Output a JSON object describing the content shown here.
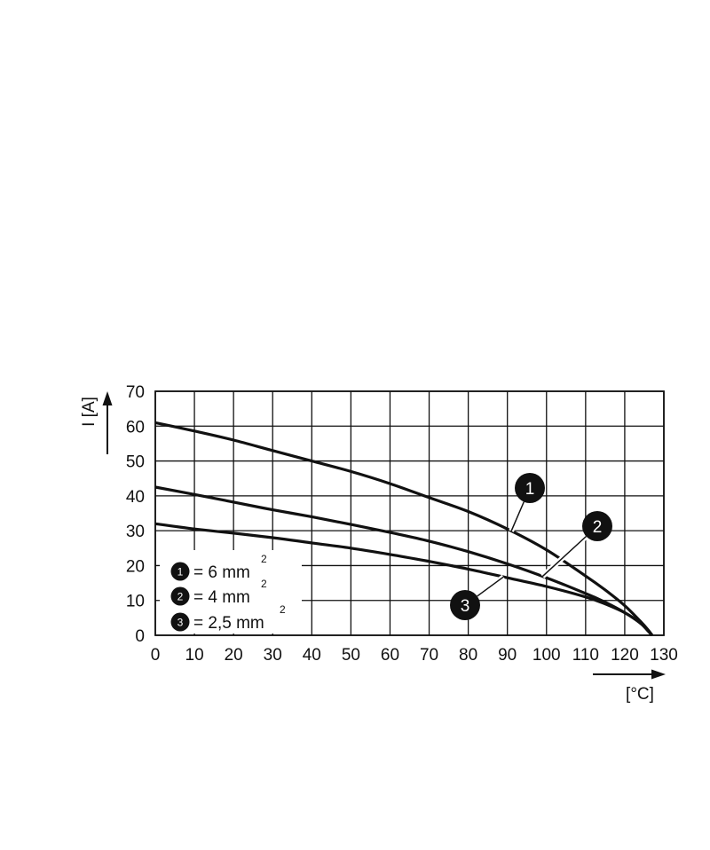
{
  "chart_data": {
    "type": "line",
    "xlabel": "[°C]",
    "ylabel": "I [A]",
    "xlim": [
      0,
      130
    ],
    "ylim": [
      0,
      70
    ],
    "x_ticks": [
      0,
      10,
      20,
      30,
      40,
      50,
      60,
      70,
      80,
      90,
      100,
      110,
      120,
      130
    ],
    "y_ticks": [
      0,
      10,
      20,
      30,
      40,
      50,
      60,
      70
    ],
    "grid": true,
    "legend_position": "bottom-left",
    "series": [
      {
        "marker": "1",
        "legend_label": "= 6 mm",
        "legend_superscript": "2",
        "x": [
          0,
          10,
          20,
          30,
          40,
          50,
          60,
          70,
          80,
          90,
          100,
          110,
          115,
          120,
          124,
          126,
          127
        ],
        "y": [
          61,
          58.6,
          56,
          53,
          50,
          47,
          43.5,
          39.5,
          35.5,
          30.5,
          24.5,
          17,
          13,
          8.5,
          4,
          1.5,
          0
        ]
      },
      {
        "marker": "2",
        "legend_label": "= 4 mm",
        "legend_superscript": "2",
        "x": [
          0,
          10,
          20,
          30,
          40,
          50,
          60,
          70,
          80,
          90,
          100,
          110,
          115,
          120,
          124,
          126,
          127
        ],
        "y": [
          42.5,
          40.4,
          38.2,
          36,
          34,
          31.8,
          29.5,
          27,
          24,
          20.5,
          16.5,
          12,
          9.5,
          6.5,
          3.5,
          1.2,
          0
        ]
      },
      {
        "marker": "3",
        "legend_label": "= 2,5 mm",
        "legend_superscript": "2",
        "x": [
          0,
          10,
          20,
          30,
          40,
          50,
          60,
          70,
          80,
          90,
          100,
          110,
          115,
          120,
          124,
          126,
          127
        ],
        "y": [
          32,
          30.5,
          29.3,
          28,
          26.5,
          25,
          23.2,
          21.2,
          19,
          16.5,
          14,
          11,
          9,
          6.5,
          3.5,
          1.2,
          0
        ]
      }
    ]
  }
}
